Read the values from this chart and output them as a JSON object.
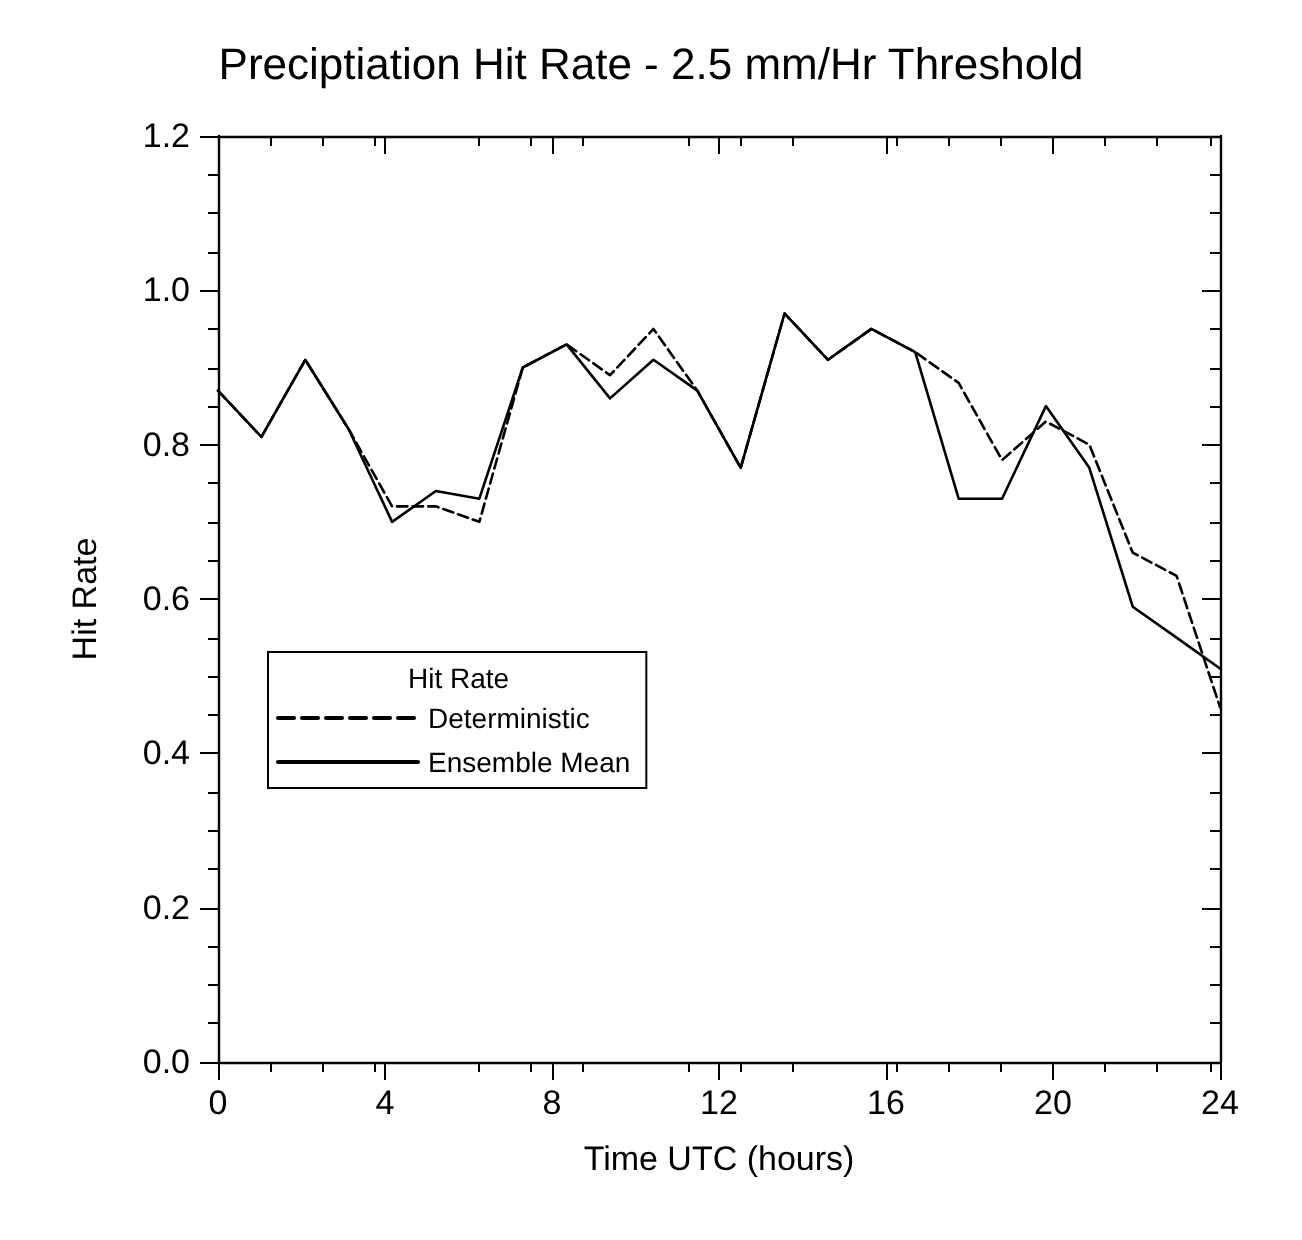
{
  "chart_data": {
    "type": "line",
    "title": "Preciptiation Hit Rate - 2.5 mm/Hr Threshold",
    "xlabel": "Time UTC (hours)",
    "ylabel": "Hit Rate",
    "legend_title": "Hit Rate",
    "legend": "left",
    "grid": false,
    "marker": "none",
    "x": [
      0,
      1.04,
      2.09,
      3.13,
      4.17,
      5.22,
      6.26,
      7.3,
      8.35,
      9.39,
      10.43,
      11.48,
      12.52,
      13.57,
      14.61,
      15.65,
      16.7,
      17.74,
      18.78,
      19.83,
      20.87,
      21.91,
      22.96,
      24
    ],
    "xlim": [
      0,
      24
    ],
    "xticks": [
      0,
      4,
      8,
      12,
      16,
      20,
      24
    ],
    "ylim": [
      0,
      1.2
    ],
    "yticks": [
      {
        "value": 0,
        "label": "0.0"
      },
      0.2,
      0.4,
      0.6,
      0.8,
      {
        "value": 1,
        "label": "1.0"
      },
      1.2
    ],
    "series": [
      {
        "name": "Deterministic",
        "color": "#000000",
        "line_style": "dashed",
        "values": [
          0.87,
          0.81,
          0.91,
          0.82,
          0.72,
          0.72,
          0.7,
          0.9,
          0.93,
          0.89,
          0.95,
          0.87,
          0.77,
          0.97,
          0.91,
          0.95,
          0.92,
          0.88,
          0.78,
          0.83,
          0.8,
          0.66,
          0.63,
          0.46
        ]
      },
      {
        "name": "Ensemble Mean",
        "color": "#000000",
        "line_style": "solid",
        "values": [
          0.87,
          0.81,
          0.91,
          0.82,
          0.7,
          0.74,
          0.73,
          0.9,
          0.93,
          0.86,
          0.91,
          0.87,
          0.77,
          0.97,
          0.91,
          0.95,
          0.92,
          0.73,
          0.73,
          0.85,
          0.77,
          0.59,
          0.55,
          0.51
        ]
      }
    ]
  }
}
